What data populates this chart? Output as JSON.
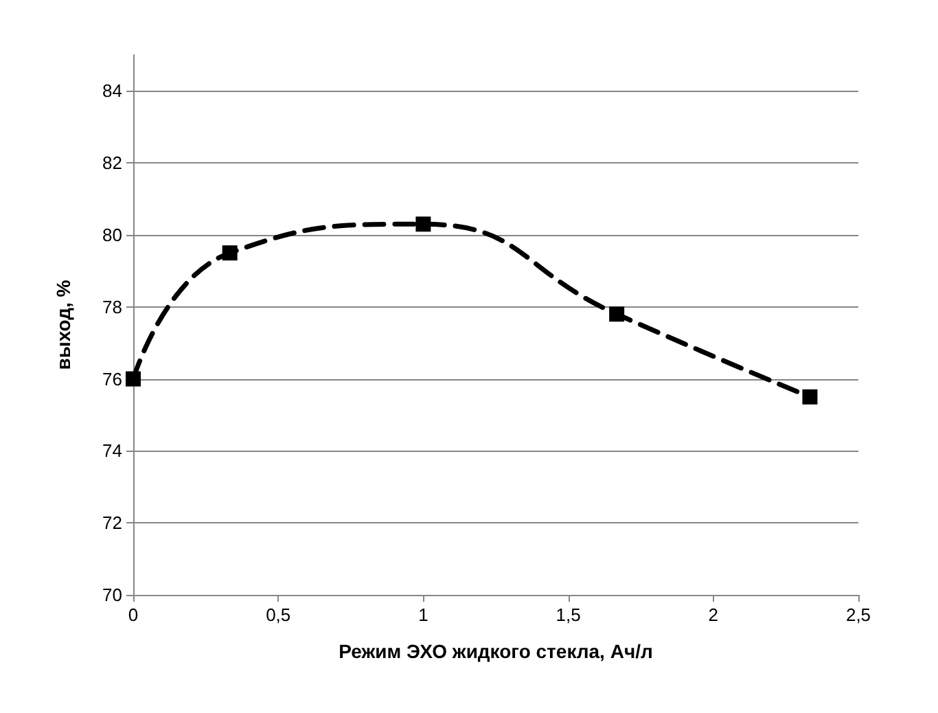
{
  "chart_data": {
    "type": "line",
    "xlabel": "Режим ЭХО жидкого стекла, Ач/л",
    "ylabel": "выход, %",
    "x": [
      0,
      0.333,
      1,
      1.667,
      2.333
    ],
    "series": [
      {
        "color": "#000000",
        "values": [
          76,
          79.5,
          80.3,
          77.8,
          75.5
        ]
      }
    ],
    "xlim": [
      0,
      2.5
    ],
    "xticks": [
      0,
      {
        "value": 0.5,
        "label": "0,5"
      },
      1,
      {
        "value": 1.5,
        "label": "1,5"
      },
      2,
      {
        "value": 2.5,
        "label": "2,5"
      }
    ],
    "ylim": [
      70,
      85
    ],
    "yticks": [
      70,
      72,
      74,
      76,
      78,
      80,
      82,
      84
    ],
    "grid": "y",
    "marker": "square",
    "line_style": "dashed"
  }
}
